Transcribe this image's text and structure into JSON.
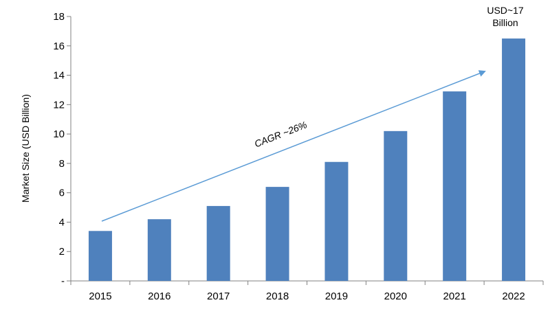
{
  "chart_data": {
    "type": "bar",
    "categories": [
      "2015",
      "2016",
      "2017",
      "2018",
      "2019",
      "2020",
      "2021",
      "2022"
    ],
    "values": [
      3.4,
      4.2,
      5.1,
      6.4,
      8.1,
      10.2,
      12.9,
      16.5
    ],
    "xlabel": "",
    "ylabel": "Market Size (USD Billion)",
    "ylim": [
      0,
      18
    ],
    "yticks": [
      0,
      2,
      4,
      6,
      8,
      10,
      12,
      14,
      16,
      18
    ],
    "ytick_labels": [
      "-",
      "2",
      "4",
      "6",
      "8",
      "10",
      "12",
      "14",
      "16",
      "18"
    ],
    "grid": false,
    "legend": "none",
    "bar_color": "#4F81BD",
    "annotations": {
      "trend_label": "CAGR ~26%",
      "top_label_line1": "USD~17",
      "top_label_line2": "Billion"
    }
  }
}
